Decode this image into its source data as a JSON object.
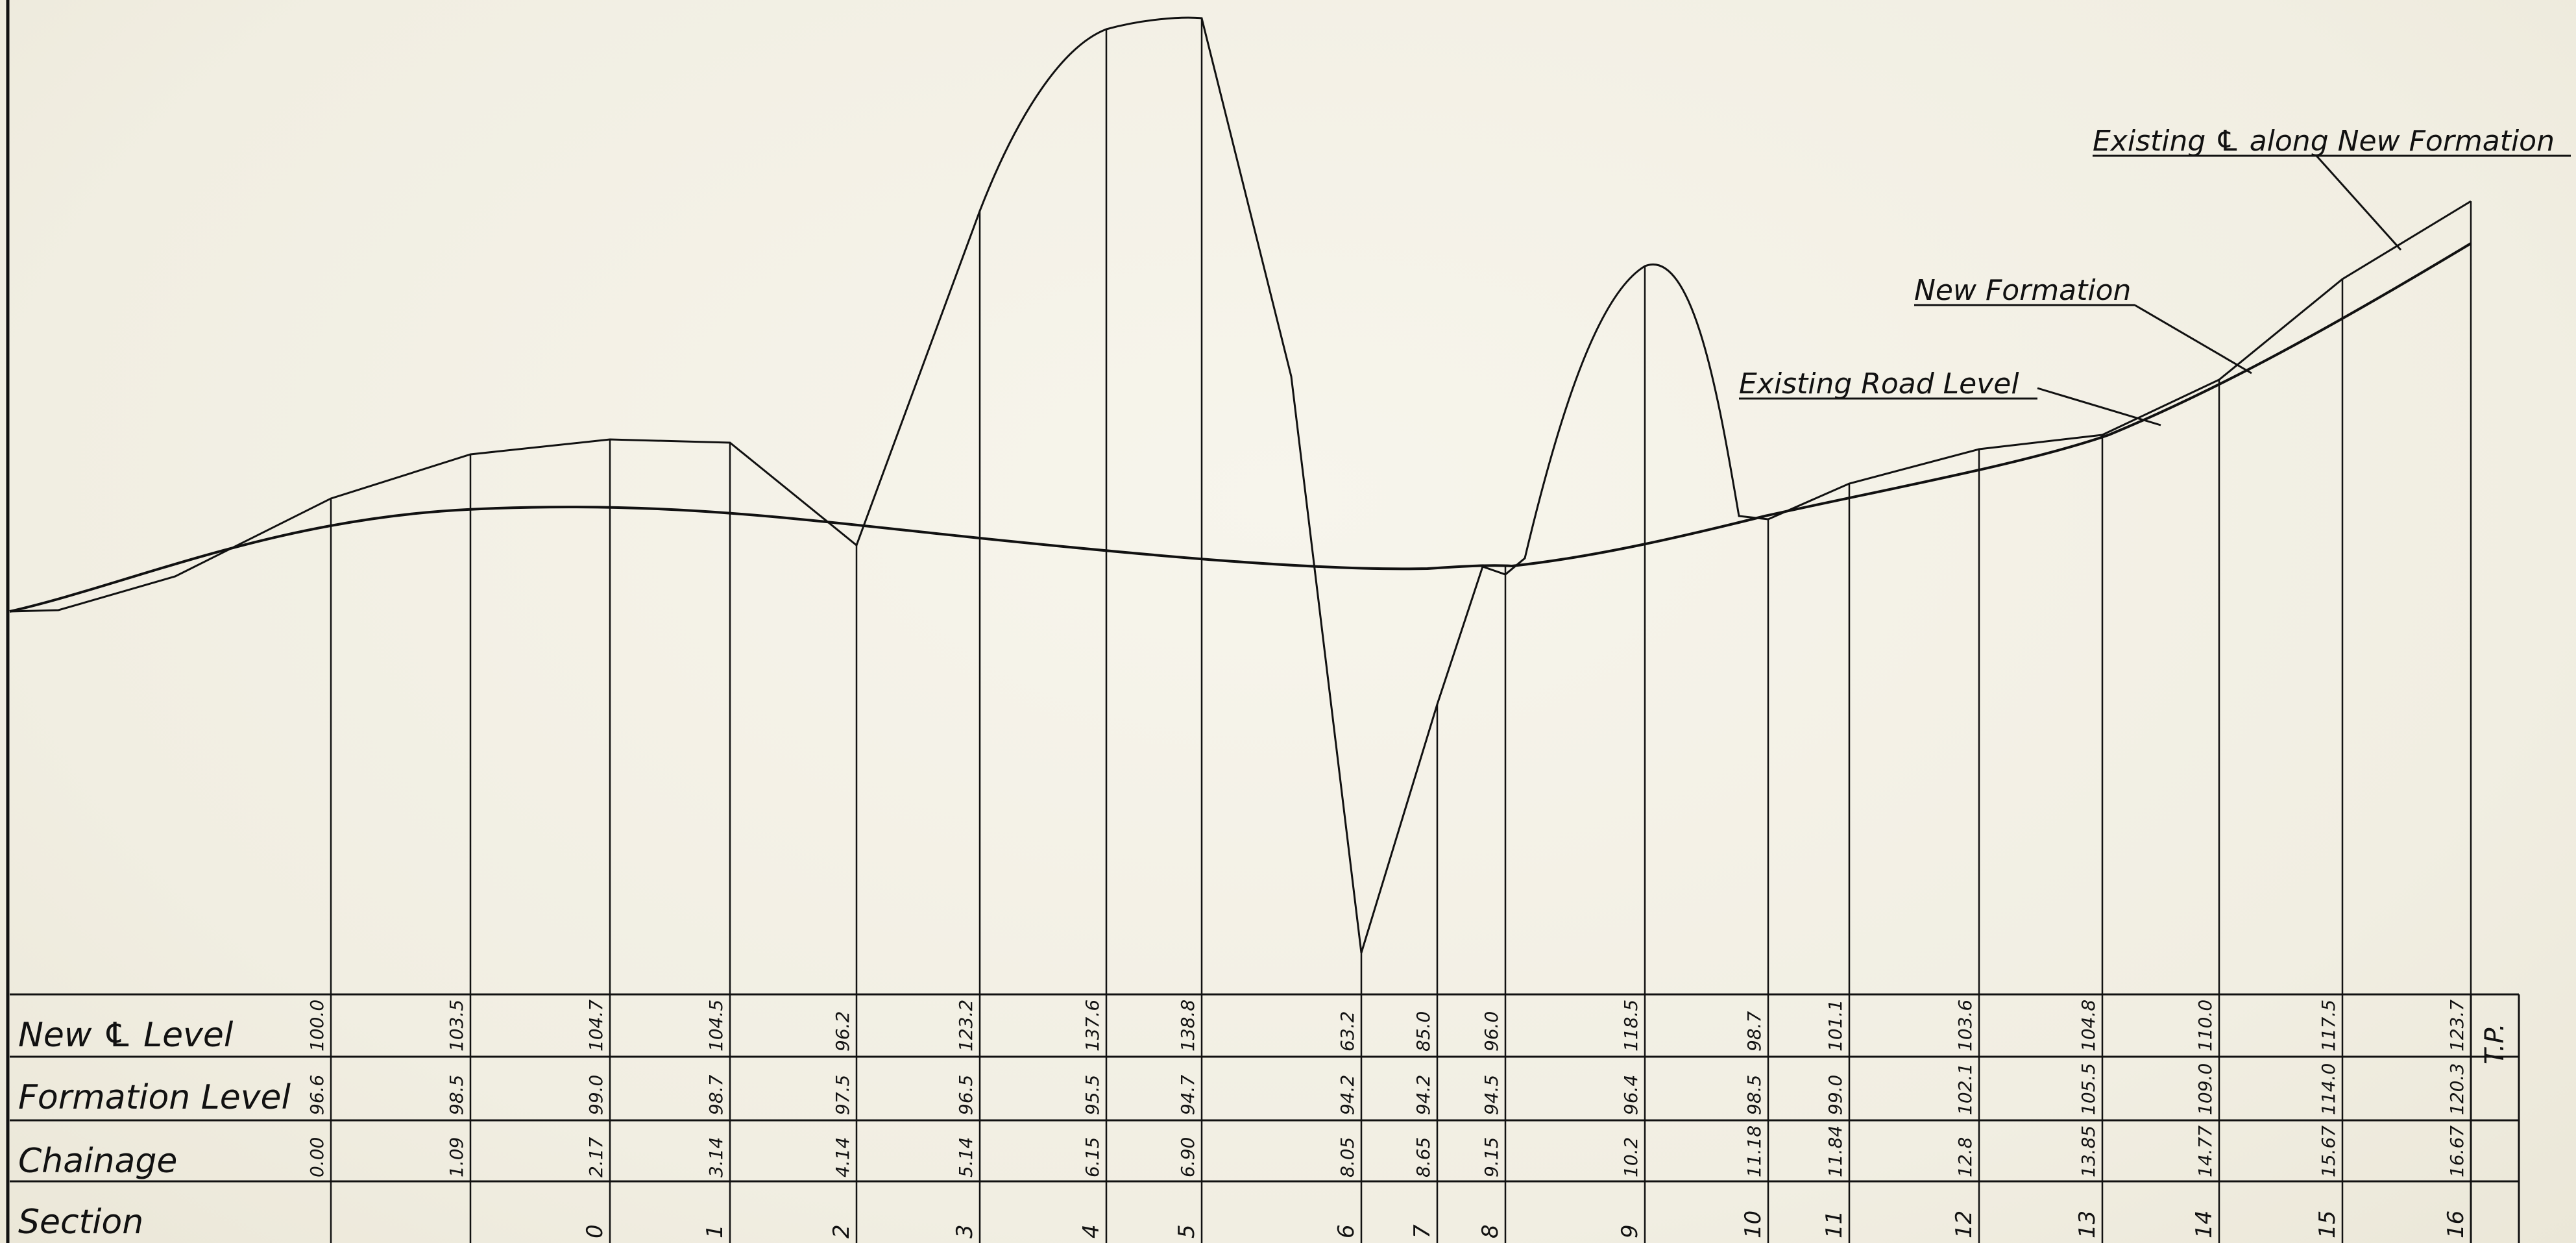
{
  "annotations": {
    "existing_cl": "Existing ℄ along New Formation",
    "new_formation": "New Formation",
    "existing_road": "Existing Road Level"
  },
  "table_labels": {
    "new_cl_level": "New ℄ Level",
    "formation_level": "Formation Level",
    "chainage": "Chainage",
    "section": "Section"
  },
  "end_mark": "T.P.",
  "stations": [
    {
      "new_cl": "100.0",
      "formation": "96.6",
      "chainage": "0.00",
      "section": ""
    },
    {
      "new_cl": "103.5",
      "formation": "98.5",
      "chainage": "1.09",
      "section": ""
    },
    {
      "new_cl": "104.7",
      "formation": "99.0",
      "chainage": "2.17",
      "section": "0"
    },
    {
      "new_cl": "104.5",
      "formation": "98.7",
      "chainage": "3.14",
      "section": "1"
    },
    {
      "new_cl": "96.2",
      "formation": "97.5",
      "chainage": "4.14",
      "section": "2"
    },
    {
      "new_cl": "123.2",
      "formation": "96.5",
      "chainage": "5.14",
      "section": "3"
    },
    {
      "new_cl": "137.6",
      "formation": "95.5",
      "chainage": "6.15",
      "section": "4"
    },
    {
      "new_cl": "138.8",
      "formation": "94.7",
      "chainage": "6.90",
      "section": "5"
    },
    {
      "new_cl": "63.2",
      "formation": "94.2",
      "chainage": "8.05",
      "section": "6"
    },
    {
      "new_cl": "85.0",
      "formation": "94.2",
      "chainage": "8.65",
      "section": "7"
    },
    {
      "new_cl": "96.0",
      "formation": "94.5",
      "chainage": "9.15",
      "section": "8"
    },
    {
      "new_cl": "118.5",
      "formation": "96.4",
      "chainage": "10.2",
      "section": "9"
    },
    {
      "new_cl": "98.7",
      "formation": "98.5",
      "chainage": "11.18",
      "section": "10"
    },
    {
      "new_cl": "101.1",
      "formation": "99.0",
      "chainage": "11.84",
      "section": "11"
    },
    {
      "new_cl": "103.6",
      "formation": "102.1",
      "chainage": "12.8",
      "section": "12"
    },
    {
      "new_cl": "104.8",
      "formation": "105.5",
      "chainage": "13.85",
      "section": "13"
    },
    {
      "new_cl": "110.0",
      "formation": "109.0",
      "chainage": "14.77",
      "section": "14"
    },
    {
      "new_cl": "117.5",
      "formation": "114.0",
      "chainage": "15.67",
      "section": "15"
    },
    {
      "new_cl": "123.7",
      "formation": "120.3",
      "chainage": "16.67",
      "section": "16"
    }
  ]
}
